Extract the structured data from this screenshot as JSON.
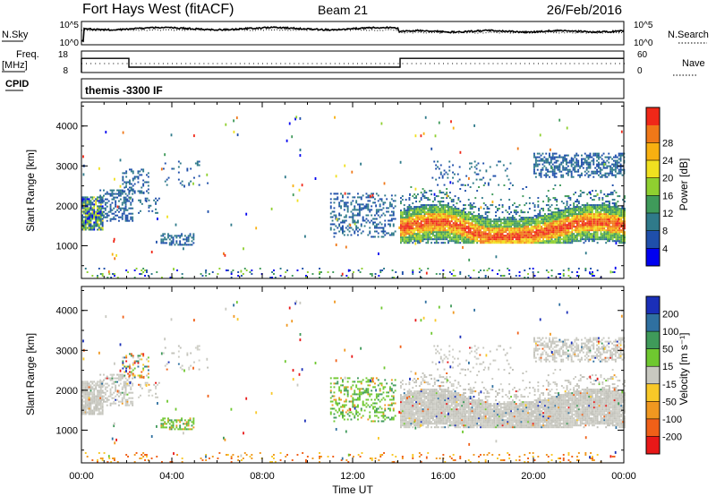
{
  "header": {
    "title": "Fort Hays West (fitACF)",
    "beam": "Beam 21",
    "date": "26/Feb/2016"
  },
  "sky_panel": {
    "left_label": "N.Sky",
    "left_top_tick": "10^5",
    "left_bottom_tick": "10^0",
    "right_label": "N.Search",
    "right_top_tick": "10^5",
    "right_bottom_tick": "10^0"
  },
  "freq_panel": {
    "left_label_1": "Freq.",
    "left_label_2": "[MHz]",
    "left_top_tick": "18",
    "left_bottom_tick": "8",
    "right_label": "Nave",
    "right_top_tick": "60",
    "right_bottom_tick": "0",
    "freq_steps": [
      {
        "from_hour": 0.0,
        "to_hour": 2.1,
        "value": 14.6
      },
      {
        "from_hour": 2.1,
        "to_hour": 14.1,
        "value": 10.5
      },
      {
        "from_hour": 14.1,
        "to_hour": 24.0,
        "value": 14.6
      }
    ],
    "freq_ylim": [
      8,
      18
    ]
  },
  "cpid_panel": {
    "label": "CPID",
    "program": "themis -3300 IF"
  },
  "chart_data": [
    {
      "type": "heatmap",
      "name": "power",
      "ylabel": "Slant Range [km]",
      "xlabel": "Time UT",
      "x_ticks": [
        "00:00",
        "04:00",
        "08:00",
        "12:00",
        "16:00",
        "20:00",
        "00:00"
      ],
      "x_tick_hours": [
        0,
        4,
        8,
        12,
        16,
        20,
        24
      ],
      "xlim_hours": [
        0,
        24
      ],
      "y_ticks": [
        1000,
        2000,
        3000,
        4000
      ],
      "ylim": [
        180,
        4600
      ],
      "colorbar": {
        "label": "Power [dB]",
        "ticks": [
          "4",
          "8",
          "12",
          "16",
          "20",
          "24",
          "28"
        ],
        "tick_values": [
          4,
          8,
          12,
          16,
          20,
          24,
          28
        ],
        "range": [
          0,
          32
        ],
        "colors": [
          "#0000f0",
          "#1f4faa",
          "#2f7a8a",
          "#3f9a5a",
          "#8fd030",
          "#f0e020",
          "#f8b010",
          "#f07818",
          "#f02818"
        ]
      }
    },
    {
      "type": "heatmap",
      "name": "velocity",
      "ylabel": "Slant Range [km]",
      "xlabel": "Time UT",
      "x_ticks": [
        "00:00",
        "04:00",
        "08:00",
        "12:00",
        "16:00",
        "20:00",
        "00:00"
      ],
      "x_tick_hours": [
        0,
        4,
        8,
        12,
        16,
        20,
        24
      ],
      "xlim_hours": [
        0,
        24
      ],
      "y_ticks": [
        1000,
        2000,
        3000,
        4000
      ],
      "ylim": [
        180,
        4600
      ],
      "colorbar": {
        "label": "Velocity [m s⁻¹]",
        "ticks": [
          "200",
          "100",
          "50",
          "15",
          "-15",
          "-50",
          "-100",
          "-200"
        ],
        "colors": [
          "#1a2fb8",
          "#2f70a0",
          "#3f9a5a",
          "#6fc830",
          "#c8c8c0",
          "#f8c828",
          "#f09820",
          "#f06018",
          "#e81818"
        ]
      }
    }
  ],
  "echo_regions": [
    {
      "t0": 0.0,
      "t1": 0.9,
      "r0": 1380,
      "r1": 2200,
      "density": 0.85,
      "center": 1750,
      "pmode": "mix",
      "vmode": "gray"
    },
    {
      "t0": 0.8,
      "t1": 2.3,
      "r0": 1600,
      "r1": 2400,
      "density": 0.45,
      "center": 2000,
      "pmode": "blue",
      "vmode": "gray"
    },
    {
      "t0": 1.8,
      "t1": 3.0,
      "r0": 2300,
      "r1": 2900,
      "density": 0.3,
      "center": 2600,
      "pmode": "blue",
      "vmode": "mix"
    },
    {
      "t0": 2.5,
      "t1": 3.6,
      "r0": 1800,
      "r1": 2200,
      "density": 0.15,
      "center": 2000,
      "pmode": "blue",
      "vmode": "gray"
    },
    {
      "t0": 3.5,
      "t1": 5.0,
      "r0": 1000,
      "r1": 1300,
      "density": 0.55,
      "center": 1150,
      "pmode": "blue",
      "vmode": "green"
    },
    {
      "t0": 3.6,
      "t1": 5.6,
      "r0": 2500,
      "r1": 3100,
      "density": 0.08,
      "center": 2800,
      "pmode": "blue",
      "vmode": "gray"
    },
    {
      "t0": 11.0,
      "t1": 13.9,
      "r0": 1200,
      "r1": 2300,
      "density": 0.3,
      "center": 1700,
      "pmode": "blue",
      "vmode": "green"
    },
    {
      "t0": 14.1,
      "t1": 24.0,
      "r0": 1050,
      "r1": 2500,
      "density": 0.9,
      "center": 1500,
      "pmode": "band",
      "vmode": "gray"
    },
    {
      "t0": 15.5,
      "t1": 19.0,
      "r0": 2500,
      "r1": 3100,
      "density": 0.12,
      "center": 2800,
      "pmode": "blue",
      "vmode": "gray"
    },
    {
      "t0": 20.0,
      "t1": 24.0,
      "r0": 2700,
      "r1": 3300,
      "density": 0.5,
      "center": 2900,
      "pmode": "blue",
      "vmode": "gray"
    },
    {
      "t0": 0.0,
      "t1": 24.0,
      "r0": 180,
      "r1": 450,
      "density": 0.1,
      "center": 300,
      "pmode": "ground",
      "vmode": "orange"
    }
  ]
}
